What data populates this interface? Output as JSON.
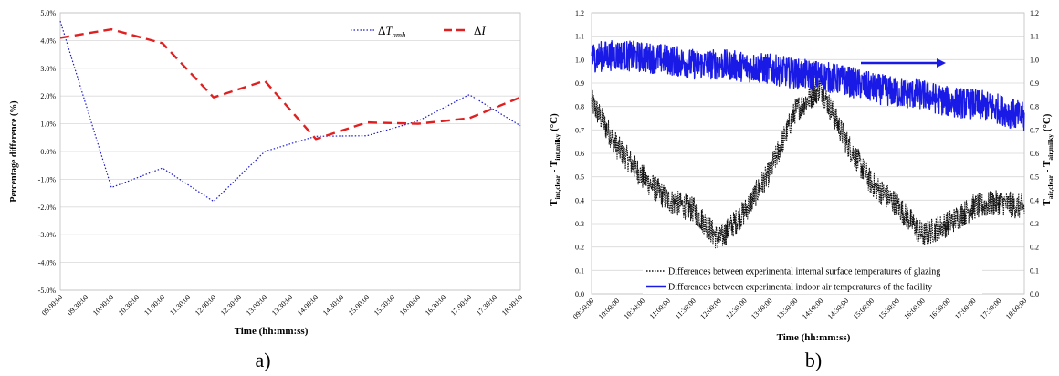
{
  "chart_data": [
    {
      "type": "line",
      "panel_label": "a)",
      "xlabel": "Time (hh:mm:ss)",
      "ylabel": "Percentage difference (%)",
      "ylim": [
        -5.0,
        5.0
      ],
      "grid": true,
      "legend_position": "top-right",
      "categories": [
        "09:00:00",
        "09:30:00",
        "10:00:00",
        "10:30:00",
        "11:00:00",
        "11:30:00",
        "12:00:00",
        "12:30:00",
        "13:00:00",
        "13:30:00",
        "14:00:00",
        "14:30:00",
        "15:00:00",
        "15:30:00",
        "16:00:00",
        "16:30:00",
        "17:00:00",
        "17:30:00",
        "18:00:00"
      ],
      "yticks": [
        "5.0%",
        "4.0%",
        "3.0%",
        "2.0%",
        "1.0%",
        "0.0%",
        "-1.0%",
        "-2.0%",
        "-3.0%",
        "-4.0%",
        "-5.0%"
      ],
      "legend": [
        {
          "symbol": "Δ",
          "main": "T",
          "sub": "amb"
        },
        {
          "symbol": "Δ",
          "main": "I",
          "sub": ""
        }
      ],
      "series": [
        {
          "x": [
            "09:00:00",
            "10:00:00",
            "11:00:00",
            "12:00:00",
            "13:00:00",
            "14:00:00",
            "15:00:00",
            "16:00:00",
            "17:00:00",
            "18:00:00"
          ],
          "values": [
            4.7,
            -1.3,
            -0.6,
            -1.8,
            0.0,
            0.55,
            0.57,
            1.1,
            2.05,
            0.93
          ],
          "color": "#1a1acc",
          "style": "dotted"
        },
        {
          "x": [
            "09:00:00",
            "10:00:00",
            "11:00:00",
            "12:00:00",
            "13:00:00",
            "14:00:00",
            "15:00:00",
            "16:00:00",
            "17:00:00",
            "18:00:00"
          ],
          "values": [
            4.1,
            4.4,
            3.9,
            1.95,
            2.55,
            0.45,
            1.05,
            1.0,
            1.2,
            1.95
          ],
          "color": "#e02020",
          "style": "dashed"
        }
      ]
    },
    {
      "type": "line",
      "panel_label": "b)",
      "xlabel": "Time (hh:mm:ss)",
      "ylabel_left": {
        "main": "T",
        "sub1": "int,clear",
        "mid": " - T",
        "sub2": "int,milky",
        "unit": " (°C)"
      },
      "ylabel_right": {
        "main": "T",
        "sub1": "air,clear",
        "mid": " - T",
        "sub2": "air,milky",
        "unit": " (°C)"
      },
      "ylim": [
        0.0,
        1.2
      ],
      "grid": true,
      "legend_position": "bottom-center",
      "categories": [
        "09:30:00",
        "10:00:00",
        "10:30:00",
        "11:00:00",
        "11:30:00",
        "12:00:00",
        "12:30:00",
        "13:00:00",
        "13:30:00",
        "14:00:00",
        "14:30:00",
        "15:00:00",
        "15:30:00",
        "16:00:00",
        "16:30:00",
        "17:00:00",
        "17:30:00",
        "18:00:00"
      ],
      "yticks": [
        "1.2",
        "1.1",
        "1.0",
        "0.9",
        "0.8",
        "0.7",
        "0.6",
        "0.5",
        "0.4",
        "0.3",
        "0.2",
        "0.1",
        "0.0"
      ],
      "legend": [
        {
          "label": "Differences between experimental internal surface temperatures of glazing"
        },
        {
          "label": "Differences between experimental indoor air temperatures of the facility"
        }
      ],
      "series": [
        {
          "name": "Differences between experimental internal surface temperatures of glazing",
          "axis": "left",
          "color": "#111111",
          "style": "dotted",
          "x": [
            "09:30:00",
            "10:00:00",
            "10:30:00",
            "11:00:00",
            "11:30:00",
            "12:00:00",
            "12:30:00",
            "13:00:00",
            "13:30:00",
            "14:00:00",
            "14:30:00",
            "15:00:00",
            "15:30:00",
            "16:00:00",
            "16:30:00",
            "17:00:00",
            "17:30:00",
            "18:00:00"
          ],
          "values": [
            0.82,
            0.63,
            0.5,
            0.4,
            0.36,
            0.23,
            0.35,
            0.52,
            0.78,
            0.88,
            0.65,
            0.47,
            0.38,
            0.25,
            0.3,
            0.37,
            0.39,
            0.37
          ]
        },
        {
          "name": "Differences between experimental indoor air temperatures of the facility",
          "axis": "right",
          "color": "#1a1ae6",
          "style": "solid",
          "x": [
            "09:30:00",
            "10:00:00",
            "10:30:00",
            "11:00:00",
            "11:30:00",
            "12:00:00",
            "12:30:00",
            "13:00:00",
            "13:30:00",
            "14:00:00",
            "14:30:00",
            "15:00:00",
            "15:30:00",
            "16:00:00",
            "16:30:00",
            "17:00:00",
            "17:30:00",
            "18:00:00"
          ],
          "values": [
            1.01,
            1.02,
            1.01,
            1.0,
            0.98,
            0.98,
            0.97,
            0.96,
            0.94,
            0.93,
            0.91,
            0.88,
            0.86,
            0.85,
            0.82,
            0.81,
            0.79,
            0.75
          ]
        }
      ]
    }
  ]
}
